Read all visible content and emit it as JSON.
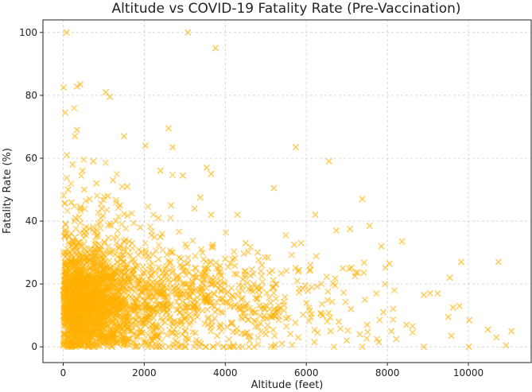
{
  "chart_data": {
    "type": "scatter",
    "title": "Altitude vs COVID-19 Fatality Rate (Pre-Vaccination)",
    "xlabel": "Altitude (feet)",
    "ylabel": "Fatality Rate (%)",
    "xlim": [
      -500,
      11550
    ],
    "ylim": [
      -5,
      104
    ],
    "xticks": [
      0,
      2000,
      4000,
      6000,
      8000,
      10000
    ],
    "yticks": [
      0,
      20,
      40,
      60,
      80,
      100
    ],
    "grid": true,
    "marker": "x",
    "color": "#FFB000",
    "points": [
      [
        80,
        100
      ],
      [
        3080,
        100
      ],
      [
        3760,
        95
      ],
      [
        10,
        82.5
      ],
      [
        420,
        83.5
      ],
      [
        340,
        82.8
      ],
      [
        1050,
        81
      ],
      [
        1150,
        79.5
      ],
      [
        50,
        74.5
      ],
      [
        2600,
        69.5
      ],
      [
        340,
        69
      ],
      [
        290,
        67
      ],
      [
        1500,
        67
      ],
      [
        2700,
        63.5
      ],
      [
        5740,
        63.5
      ],
      [
        2030,
        64
      ],
      [
        6560,
        59
      ],
      [
        90,
        61
      ],
      [
        230,
        58
      ],
      [
        480,
        56
      ],
      [
        740,
        59
      ],
      [
        2400,
        56
      ],
      [
        3540,
        57
      ],
      [
        3650,
        55
      ],
      [
        2950,
        54.5
      ],
      [
        1230,
        53
      ],
      [
        5200,
        50.5
      ],
      [
        1580,
        51
      ],
      [
        7380,
        47
      ],
      [
        2660,
        45
      ],
      [
        3380,
        47.5
      ],
      [
        4300,
        42
      ],
      [
        6220,
        42
      ],
      [
        3240,
        44
      ],
      [
        3650,
        42
      ],
      [
        2350,
        41
      ],
      [
        7080,
        37.5
      ],
      [
        7560,
        38.5
      ],
      [
        6740,
        37
      ],
      [
        8360,
        33.5
      ],
      [
        5870,
        33
      ],
      [
        5700,
        32.5
      ],
      [
        7850,
        32
      ],
      [
        9820,
        27
      ],
      [
        10740,
        27
      ],
      [
        8050,
        26.5
      ],
      [
        6900,
        25
      ],
      [
        7200,
        22.5
      ],
      [
        9540,
        22
      ],
      [
        6100,
        26
      ],
      [
        5800,
        24
      ],
      [
        4900,
        26
      ],
      [
        8900,
        16.5
      ],
      [
        9050,
        17
      ],
      [
        9240,
        17
      ],
      [
        9620,
        12.5
      ],
      [
        9780,
        13
      ],
      [
        9500,
        9.5
      ],
      [
        8470,
        7
      ],
      [
        10020,
        8.5
      ],
      [
        10480,
        5.5
      ],
      [
        11060,
        5
      ],
      [
        9580,
        3.5
      ],
      [
        10690,
        3
      ],
      [
        10930,
        0.5
      ],
      [
        10010,
        0
      ],
      [
        8900,
        0
      ],
      [
        8220,
        2.5
      ],
      [
        7790,
        1.5
      ],
      [
        7320,
        4
      ],
      [
        7000,
        2
      ],
      [
        6600,
        5
      ],
      [
        6200,
        1.5
      ],
      [
        5800,
        3
      ],
      [
        5400,
        1
      ],
      [
        5000,
        4
      ],
      [
        4600,
        2
      ],
      [
        4200,
        0.5
      ],
      [
        3800,
        3.5
      ],
      [
        3400,
        1
      ],
      [
        3000,
        5
      ],
      [
        2600,
        0
      ],
      [
        2200,
        2
      ],
      [
        1800,
        0
      ],
      [
        1500,
        3
      ],
      [
        1200,
        0
      ],
      [
        900,
        2
      ],
      [
        600,
        0
      ],
      [
        300,
        0
      ],
      [
        100,
        0
      ],
      [
        2900,
        28
      ],
      [
        3300,
        22
      ],
      [
        3900,
        18
      ],
      [
        4400,
        15
      ],
      [
        4700,
        20
      ],
      [
        5100,
        12
      ],
      [
        5500,
        9
      ],
      [
        6000,
        14
      ],
      [
        6400,
        10
      ],
      [
        6800,
        8
      ],
      [
        7100,
        12
      ],
      [
        7500,
        7
      ],
      [
        7900,
        11
      ],
      [
        8100,
        5
      ],
      [
        4800,
        30
      ],
      [
        4500,
        33
      ],
      [
        4000,
        28
      ],
      [
        3500,
        25
      ],
      [
        3100,
        19
      ],
      [
        2700,
        30
      ],
      [
        2400,
        35
      ],
      [
        2100,
        29
      ],
      [
        1900,
        38
      ],
      [
        1700,
        33
      ],
      [
        1400,
        45
      ],
      [
        1300,
        40
      ],
      [
        1100,
        48
      ],
      [
        950,
        44
      ],
      [
        820,
        52
      ],
      [
        650,
        47
      ],
      [
        520,
        50
      ],
      [
        420,
        44
      ],
      [
        300,
        41
      ],
      [
        200,
        46
      ],
      [
        120,
        50
      ],
      [
        60,
        39
      ],
      [
        40,
        35
      ]
    ]
  }
}
